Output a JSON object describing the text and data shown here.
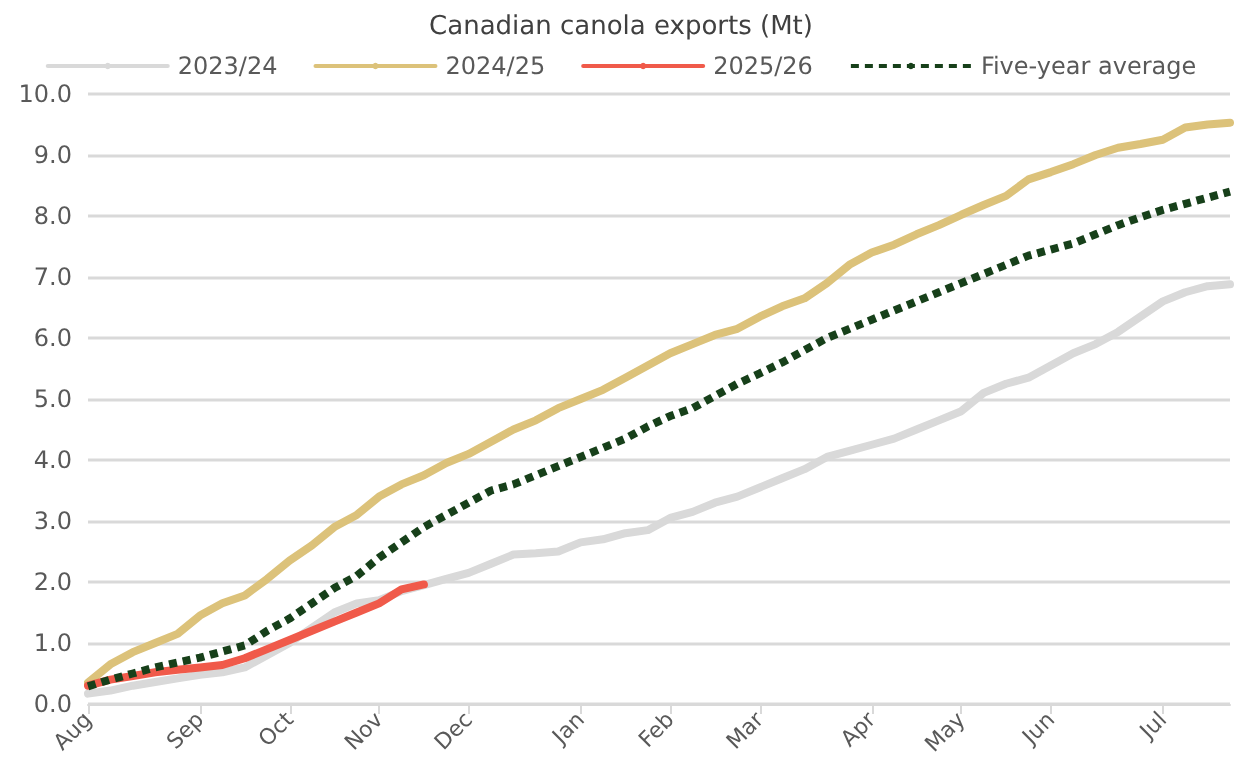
{
  "chart_data": {
    "type": "line",
    "title": "Canadian canola exports (Mt)",
    "categories": [
      "Aug",
      null,
      null,
      null,
      null,
      "Sep",
      null,
      null,
      null,
      "Oct",
      null,
      null,
      null,
      "Nov",
      null,
      null,
      null,
      "Dec",
      null,
      null,
      null,
      null,
      "Jan",
      null,
      null,
      null,
      "Feb",
      null,
      null,
      null,
      "Mar",
      null,
      null,
      null,
      null,
      "Apr",
      null,
      null,
      null,
      "May",
      null,
      null,
      null,
      "Jun",
      null,
      null,
      null,
      null,
      "Jul",
      null,
      null,
      null
    ],
    "series": [
      {
        "name": "2023/24",
        "color": "#d9d9d9",
        "values": [
          0.17,
          0.22,
          0.3,
          0.36,
          0.42,
          0.48,
          0.52,
          0.6,
          0.8,
          1.0,
          1.25,
          1.5,
          1.65,
          1.7,
          1.85,
          1.95,
          2.05,
          2.15,
          2.3,
          2.45,
          2.47,
          2.5,
          2.65,
          2.7,
          2.8,
          2.85,
          3.05,
          3.15,
          3.3,
          3.4,
          3.55,
          3.7,
          3.85,
          4.05,
          4.15,
          4.25,
          4.35,
          4.5,
          4.65,
          4.8,
          5.1,
          5.25,
          5.35,
          5.55,
          5.75,
          5.9,
          6.1,
          6.35,
          6.6,
          6.75,
          6.85,
          6.88
        ]
      },
      {
        "name": "2024/25",
        "color": "#dcc27a",
        "values": [
          0.35,
          0.65,
          0.85,
          1.0,
          1.15,
          1.45,
          1.65,
          1.78,
          2.05,
          2.35,
          2.6,
          2.9,
          3.1,
          3.4,
          3.6,
          3.75,
          3.95,
          4.1,
          4.3,
          4.5,
          4.65,
          4.85,
          5.0,
          5.15,
          5.35,
          5.55,
          5.75,
          5.9,
          6.05,
          6.15,
          6.35,
          6.52,
          6.65,
          6.9,
          7.2,
          7.4,
          7.53,
          7.7,
          7.85,
          8.02,
          8.18,
          8.33,
          8.6,
          8.72,
          8.85,
          9.0,
          9.12,
          9.18,
          9.25,
          9.45,
          9.5,
          9.53
        ]
      },
      {
        "name": "2025/26",
        "color": "#f05a4a",
        "values": [
          0.3,
          0.4,
          0.46,
          0.52,
          0.56,
          0.6,
          0.64,
          0.75,
          0.9,
          1.05,
          1.2,
          1.35,
          1.5,
          1.65,
          1.88,
          1.96,
          null,
          null,
          null,
          null,
          null,
          null,
          null,
          null,
          null,
          null,
          null,
          null,
          null,
          null,
          null,
          null,
          null,
          null,
          null,
          null,
          null,
          null,
          null,
          null,
          null,
          null,
          null,
          null,
          null,
          null,
          null,
          null,
          null,
          null,
          null,
          null
        ]
      },
      {
        "name": "Five-year average",
        "color": "#17401a",
        "line_style": "dashed",
        "values": [
          0.29,
          0.4,
          0.5,
          0.6,
          0.68,
          0.76,
          0.86,
          0.96,
          1.2,
          1.4,
          1.65,
          1.9,
          2.1,
          2.4,
          2.65,
          2.9,
          3.1,
          3.3,
          3.5,
          3.6,
          3.75,
          3.9,
          4.05,
          4.2,
          4.35,
          4.55,
          4.72,
          4.85,
          5.05,
          5.25,
          5.42,
          5.6,
          5.8,
          6.0,
          6.15,
          6.3,
          6.45,
          6.6,
          6.75,
          6.9,
          7.05,
          7.2,
          7.35,
          7.45,
          7.55,
          7.7,
          7.85,
          7.98,
          8.1,
          8.2,
          8.3,
          8.4
        ]
      }
    ],
    "ylim": [
      0,
      10
    ],
    "yticks": [
      {
        "value": 0,
        "label": "0.0"
      },
      {
        "value": 1,
        "label": "1.0"
      },
      {
        "value": 2,
        "label": "2.0"
      },
      {
        "value": 3,
        "label": "3.0"
      },
      {
        "value": 4,
        "label": "4.0"
      },
      {
        "value": 5,
        "label": "5.0"
      },
      {
        "value": 6,
        "label": "6.0"
      },
      {
        "value": 7,
        "label": "7.0"
      },
      {
        "value": 8,
        "label": "8.0"
      },
      {
        "value": 9,
        "label": "9.0"
      },
      {
        "value": 10,
        "label": "10.0"
      }
    ],
    "grid": "y",
    "legend": "top",
    "marker": "none",
    "line_style": "solid"
  }
}
